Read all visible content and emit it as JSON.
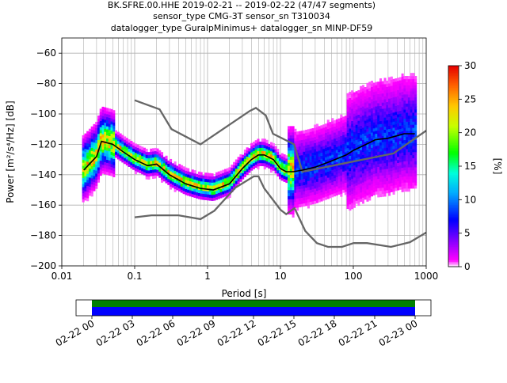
{
  "title_lines": [
    "BK.SFRE.00.HHE   2019-02-21 -- 2019-02-22  (47/47 segments)",
    "sensor_type CMG-3T sensor_sn T310034",
    "datalogger_type GuralpMinimus+ datalogger_sn MINP-DF59"
  ],
  "chart_data": [
    {
      "type": "heatmap",
      "title": "BK.SFRE.00.HHE   2019-02-21 -- 2019-02-22  (47/47 segments)",
      "xlabel": "Period [s]",
      "ylabel": "Power [m²/s⁴/Hz] [dB]",
      "xscale": "log",
      "xlim": [
        0.01,
        1000
      ],
      "ylim": [
        -200,
        -50
      ],
      "x_tick_labels": [
        "0.01",
        "0.1",
        "1",
        "10",
        "100",
        "1000"
      ],
      "x_ticks": [
        0.01,
        0.1,
        1,
        10,
        100,
        1000
      ],
      "y_ticks": [
        -200,
        -180,
        -160,
        -140,
        -120,
        -100,
        -80,
        -60
      ],
      "grid": true,
      "colorbar": {
        "label": "[%]",
        "range": [
          0,
          30
        ],
        "ticks": [
          0,
          5,
          10,
          15,
          20,
          25,
          30
        ]
      },
      "series": [
        {
          "name": "",
          "role": "mode",
          "x": [
            0.02,
            0.025,
            0.03,
            0.035,
            0.05,
            0.07,
            0.1,
            0.15,
            0.2,
            0.3,
            0.5,
            0.8,
            1.2,
            2,
            3,
            4,
            5,
            6,
            8,
            10,
            12,
            15,
            20,
            30,
            50,
            80,
            100,
            150,
            200,
            300,
            500,
            700
          ],
          "y": [
            -137,
            -132,
            -128,
            -118,
            -120,
            -125,
            -130,
            -134,
            -133,
            -140,
            -146,
            -149,
            -150,
            -146,
            -136,
            -130,
            -127,
            -127,
            -130,
            -136,
            -138,
            -138,
            -137,
            -135,
            -131,
            -127,
            -124,
            -120,
            -117,
            -116,
            -113,
            -113
          ]
        },
        {
          "name": "",
          "role": "new_high_noise_model",
          "x": [
            0.1,
            0.22,
            0.32,
            0.8,
            3.8,
            4.6,
            6.3,
            7.9,
            15.4,
            20,
            354.8,
            1000
          ],
          "y": [
            -91,
            -97,
            -110,
            -120,
            -98,
            -96,
            -101,
            -113,
            -120,
            -138,
            -126,
            -111
          ]
        },
        {
          "name": "",
          "role": "new_low_noise_model",
          "x": [
            0.1,
            0.17,
            0.4,
            0.8,
            1.24,
            2.4,
            4.3,
            5,
            6,
            10,
            12,
            15.6,
            21.9,
            31.6,
            45,
            70,
            101,
            154,
            328,
            600,
            1000
          ],
          "y": [
            -168,
            -166.7,
            -166.7,
            -169.2,
            -163.7,
            -148.6,
            -141.1,
            -141.1,
            -149,
            -163,
            -166,
            -162,
            -177,
            -185,
            -187.5,
            -187.5,
            -185,
            -185,
            -187.5,
            -184.4,
            -178
          ]
        }
      ]
    },
    {
      "type": "bar",
      "title": "",
      "x_tick_labels": [
        "02-22 00",
        "02-22 03",
        "02-22 06",
        "02-22 09",
        "02-22 12",
        "02-22 15",
        "02-22 18",
        "02-22 21",
        "02-23 00"
      ],
      "series": [
        {
          "name": "",
          "role": "data_available",
          "color": "#008000",
          "coverage": [
            0,
            1
          ]
        },
        {
          "name": "",
          "role": "data_used",
          "color": "#0000ff",
          "coverage": [
            0,
            1
          ]
        }
      ]
    }
  ]
}
